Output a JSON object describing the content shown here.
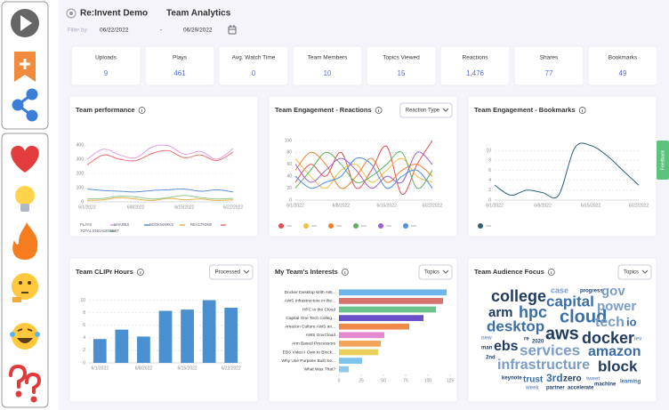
{
  "header": {
    "org": "Re:Invent Demo",
    "page": "Team Analytics",
    "filter_label": "Filter by:",
    "start": "06/22/2022",
    "separator": "-",
    "end": "06/29/2022"
  },
  "stats": [
    {
      "label": "Uploads",
      "value": 9
    },
    {
      "label": "Plays",
      "value": 461
    },
    {
      "label": "Avg. Watch Time",
      "value": 0
    },
    {
      "label": "Team Members",
      "value": 10
    },
    {
      "label": "Topics Viewed",
      "value": 15
    },
    {
      "label": "Reactions",
      "value": "1,476"
    },
    {
      "label": "Shares",
      "value": 77
    },
    {
      "label": "Bookmarks",
      "value": 49
    }
  ],
  "feedback": "Feedback",
  "panels": [
    {
      "title": "Team performance",
      "chart": {
        "type": "line",
        "categories": [
          "6/1/2022",
          null,
          null,
          "6/8/2022",
          null,
          null,
          "6/15/2022",
          null,
          null,
          "6/22/2022"
        ],
        "ylim": [
          0,
          450
        ],
        "yticks": [
          0,
          100,
          200,
          300,
          400
        ],
        "grid": true,
        "series": [
          {
            "name": "PLAYS",
            "color": "#d9a0e0",
            "values": [
              300,
              370,
              330,
              310,
              385,
              395,
              335,
              355,
              300,
              375
            ]
          },
          {
            "name": "SHARES",
            "color": "#5b8fd6",
            "values": [
              90,
              80,
              75,
              70,
              80,
              85,
              90,
              75,
              85,
              70
            ]
          },
          {
            "name": "BOOKMARKS",
            "color": "#e8b04a",
            "values": [
              10,
              15,
              30,
              20,
              10,
              25,
              15,
              20,
              10,
              15
            ]
          },
          {
            "name": "REACTIONS",
            "color": "#f07070",
            "values": [
              260,
              330,
              300,
              290,
              340,
              360,
              310,
              330,
              290,
              350
            ]
          },
          {
            "name": "TOTAL ENGAGEMENT",
            "color": "#8fc98f",
            "values": [
              20,
              25,
              40,
              35,
              20,
              30,
              45,
              30,
              20,
              25
            ]
          }
        ]
      }
    },
    {
      "title": "Team Engagement - Reactions",
      "control": "Reaction Type",
      "chart": {
        "type": "line",
        "categories": [
          "6/1/2022",
          null,
          null,
          "6/8/2022",
          null,
          null,
          "6/15/2022",
          null,
          null,
          "6/22/2022"
        ],
        "ylim": [
          0,
          100
        ],
        "yticks": [
          0,
          20,
          40,
          60,
          80,
          100
        ],
        "grid": true,
        "series": [
          {
            "color": "#e05050",
            "values": [
              30,
              60,
              40,
              80,
              20,
              50,
              90,
              10,
              60,
              100
            ]
          },
          {
            "color": "#f0c040",
            "values": [
              70,
              40,
              20,
              50,
              60,
              30,
              50,
              70,
              40,
              30
            ]
          },
          {
            "color": "#f08030",
            "values": [
              50,
              80,
              60,
              20,
              40,
              70,
              30,
              50,
              60,
              40
            ]
          },
          {
            "color": "#60b060",
            "values": [
              20,
              50,
              80,
              60,
              30,
              40,
              60,
              80,
              20,
              50
            ]
          },
          {
            "color": "#a060d0",
            "values": [
              60,
              30,
              50,
              70,
              50,
              20,
              40,
              30,
              80,
              60
            ]
          },
          {
            "color": "#5090e0",
            "values": [
              40,
              20,
              30,
              40,
              70,
              60,
              20,
              40,
              50,
              20
            ]
          }
        ]
      }
    },
    {
      "title": "Team Engagement - Bookmarks",
      "chart": {
        "type": "line",
        "categories": [
          "6/1/2022",
          null,
          null,
          "6/8/2022",
          null,
          null,
          "6/15/2022",
          null,
          null,
          "6/22/2022"
        ],
        "ylim": [
          0,
          12
        ],
        "yticks": [
          0,
          2,
          4,
          6,
          8,
          10
        ],
        "grid": true,
        "series": [
          {
            "color": "#2d5f7a",
            "values": [
              3,
              1,
              2,
              1.5,
              1,
              10.5,
              11,
              9,
              6,
              3
            ]
          }
        ]
      }
    },
    {
      "title": "Team CLIPr Hours",
      "control": "Processed",
      "chart": {
        "type": "bar",
        "categories": [
          "6/1/2022",
          null,
          "6/8/2022",
          null,
          "6/15/2022",
          null,
          "6/22/2022"
        ],
        "values": [
          3.8,
          5.3,
          4.2,
          8.3,
          8.5,
          10,
          8.8
        ],
        "color": "#4a90d0",
        "ylim": [
          0,
          10.5
        ],
        "yticks": [
          0,
          2,
          4,
          6,
          8,
          10
        ],
        "grid": true
      }
    },
    {
      "title": "My Team's Interests",
      "control": "Topics",
      "chart": {
        "type": "hbar",
        "categories": [
          "Docker Desktop With AW...",
          "AWS Infrastructure in the...",
          "HPC in the Cloud",
          "Capital One Tech Colleg...",
          "Amazon Culture AWS an...",
          "AWS GovCloud",
          "Arm Based Processors",
          "EBS Video I Own to Block...",
          "Why Use Purpose Built Se...",
          "What Was That?"
        ],
        "values": [
          121,
          117,
          109,
          95,
          79,
          51,
          47,
          44,
          26,
          11
        ],
        "colors": [
          "#6fb7ea",
          "#d9736f",
          "#6cc28a",
          "#6a4fc8",
          "#f08a4b",
          "#e48ad0",
          "#f5a35a",
          "#e8d05a",
          "#7cc3ee",
          "#8cc8f0"
        ],
        "xlim": [
          0,
          125
        ],
        "xticks": [
          0,
          25,
          50,
          75,
          100,
          125
        ],
        "grid": false
      }
    },
    {
      "title": "Team Audience Focus",
      "control": "Topics",
      "chart": {
        "type": "wordcloud",
        "words": [
          "college",
          "case",
          "progress",
          "gov",
          "capital",
          "arm",
          "hpc",
          "power",
          "desktop",
          "cloud",
          "tech",
          "io",
          "aws",
          "docker",
          "new",
          "lev",
          "man",
          "ebs",
          "re",
          "2020",
          "services",
          "amazon",
          "2nd",
          "infrastructure",
          "block",
          "keynote",
          "trust",
          "3rd",
          "zero",
          "tweet",
          "machine",
          "learning",
          "week",
          "partner",
          "accelerate"
        ]
      }
    }
  ]
}
